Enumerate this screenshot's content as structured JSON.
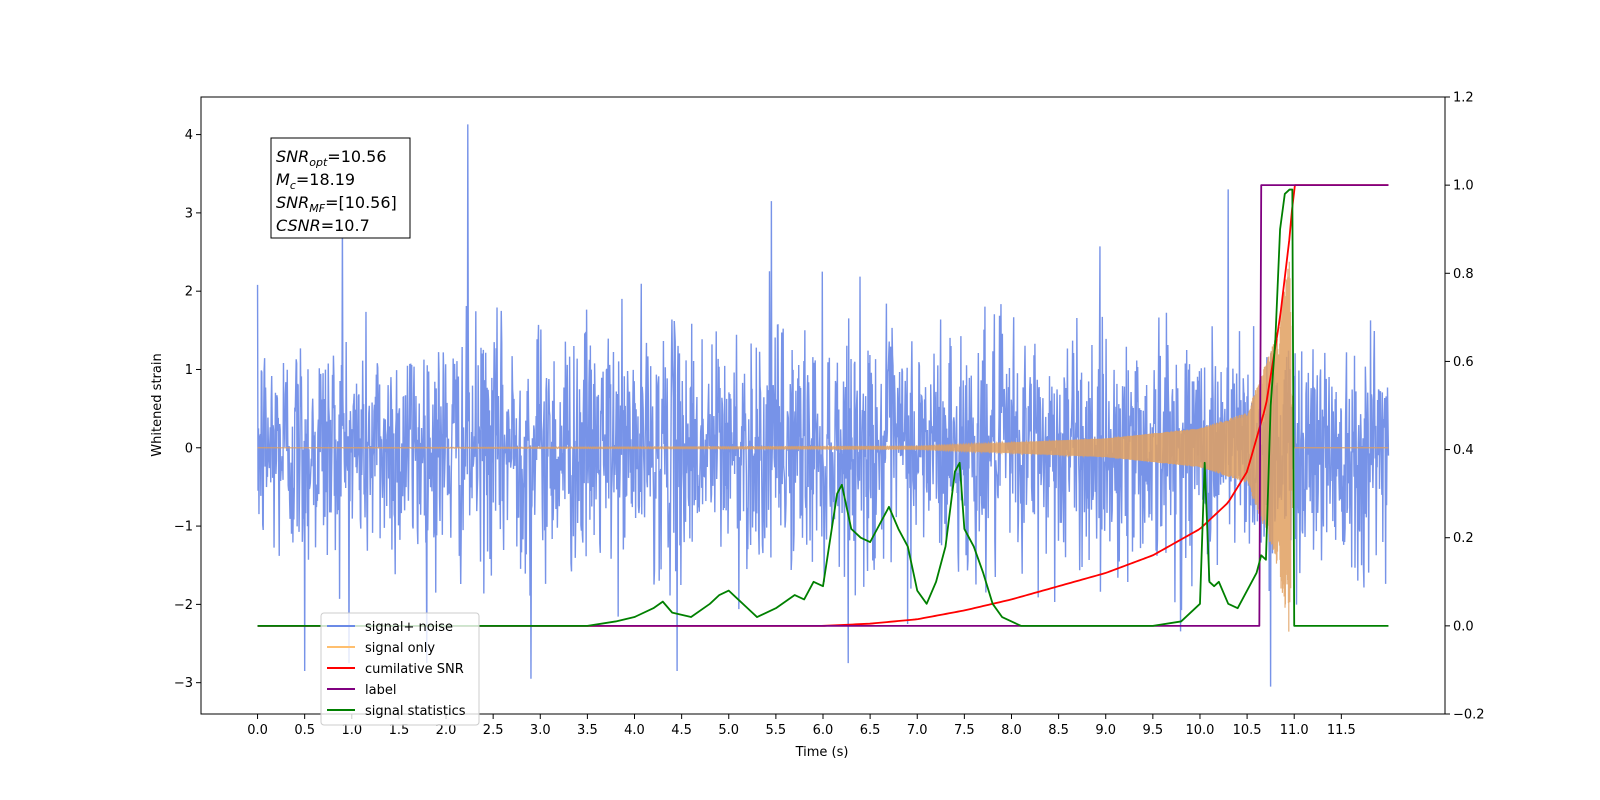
{
  "chart_data": {
    "type": "line",
    "title": "",
    "xlabel": "Time (s)",
    "ylabel": "Whitened strain",
    "ylabel_right": "",
    "xlim": [
      -0.6,
      12.6
    ],
    "ylim": [
      -3.4,
      4.48
    ],
    "ylim_right": [
      -0.2,
      1.2
    ],
    "x_ticks": [
      0.0,
      0.5,
      1.0,
      1.5,
      2.0,
      2.5,
      3.0,
      3.5,
      4.0,
      4.5,
      5.0,
      5.5,
      6.0,
      6.5,
      7.0,
      7.5,
      8.0,
      8.5,
      9.0,
      9.5,
      10.0,
      10.5,
      11.0,
      11.5
    ],
    "x_tick_labels": [
      "0.0",
      "0.5",
      "1.0",
      "1.5",
      "2.0",
      "2.5",
      "3.0",
      "3.5",
      "4.0",
      "4.5",
      "5.0",
      "5.5",
      "6.0",
      "6.5",
      "7.0",
      "7.5",
      "8.0",
      "8.5",
      "9.0",
      "9.5",
      "10.0",
      "10.5",
      "11.0",
      "11.5"
    ],
    "y_ticks": [
      -3,
      -2,
      -1,
      0,
      1,
      2,
      3,
      4
    ],
    "y_tick_labels": [
      "−3",
      "−2",
      "−1",
      "0",
      "1",
      "2",
      "3",
      "4"
    ],
    "y_right_ticks": [
      -0.2,
      0.0,
      0.2,
      0.4,
      0.6,
      0.8,
      1.0,
      1.2
    ],
    "y_right_tick_labels": [
      "−0.2",
      "0.0",
      "0.2",
      "0.4",
      "0.6",
      "0.8",
      "1.0",
      "1.2"
    ],
    "grid": false,
    "legend": {
      "placement": "lower-left",
      "entries": [
        {
          "label": "signal+ noise",
          "color": "#6b8ae6"
        },
        {
          "label": "signal only",
          "color": "#ffbf6e"
        },
        {
          "label": "cumilative SNR",
          "color": "#ff0000"
        },
        {
          "label": "label",
          "color": "#800080"
        },
        {
          "label": "signal statistics",
          "color": "#008000"
        }
      ]
    },
    "annotation": [
      {
        "main": "SNR",
        "sub": "opt",
        "rest": "=10.56"
      },
      {
        "main": "M",
        "sub": "c",
        "rest": "=18.19"
      },
      {
        "main": "SNR",
        "sub": "MF",
        "rest": "=[10.56]"
      },
      {
        "main": "CSNR",
        "sub": "",
        "rest": "=10.7"
      }
    ],
    "series": [
      {
        "name": "signal+ noise",
        "axis": "left",
        "color": "#6b8ae6",
        "x_range": [
          0.0,
          12.0
        ],
        "approx_std": 0.75,
        "approx_max": 4.13,
        "approx_min": -3.05,
        "notable_peaks": [
          [
            2.23,
            4.13
          ],
          [
            10.3,
            3.3
          ],
          [
            5.45,
            3.15
          ],
          [
            0.9,
            2.9
          ]
        ],
        "notable_dips": [
          [
            2.9,
            -2.95
          ],
          [
            0.5,
            -2.85
          ],
          [
            4.45,
            -2.85
          ],
          [
            10.75,
            -3.05
          ]
        ]
      },
      {
        "name": "signal only",
        "axis": "left",
        "color": "#e0a060",
        "description_points": [
          [
            0.0,
            0.0
          ],
          [
            7.0,
            0.02
          ],
          [
            9.0,
            0.12
          ],
          [
            10.0,
            0.25
          ],
          [
            10.5,
            0.45
          ],
          [
            10.8,
            1.4
          ],
          [
            10.95,
            2.4
          ],
          [
            11.0,
            0.0
          ],
          [
            12.0,
            0.0
          ]
        ]
      },
      {
        "name": "cumilative SNR",
        "axis": "right",
        "color": "#ff0000",
        "x": [
          0.0,
          6.0,
          6.5,
          7.0,
          7.5,
          8.0,
          8.5,
          9.0,
          9.5,
          10.0,
          10.3,
          10.5,
          10.7,
          10.85,
          10.95,
          11.0,
          11.5,
          12.0
        ],
        "y": [
          0.0,
          0.0,
          0.005,
          0.015,
          0.035,
          0.06,
          0.09,
          0.12,
          0.16,
          0.22,
          0.28,
          0.35,
          0.5,
          0.7,
          0.88,
          1.0,
          1.0,
          1.0
        ]
      },
      {
        "name": "label",
        "axis": "right",
        "color": "#800080",
        "x": [
          0.0,
          10.63,
          10.65,
          10.9,
          10.92,
          10.95,
          12.0
        ],
        "y": [
          0.0,
          0.0,
          1.0,
          1.0,
          1.0,
          1.0,
          1.0
        ]
      },
      {
        "name": "signal statistics",
        "axis": "right",
        "color": "#008000",
        "x": [
          0.0,
          3.5,
          3.8,
          4.0,
          4.2,
          4.3,
          4.4,
          4.6,
          4.8,
          4.9,
          5.0,
          5.1,
          5.2,
          5.3,
          5.5,
          5.7,
          5.8,
          5.9,
          6.0,
          6.1,
          6.15,
          6.2,
          6.3,
          6.4,
          6.5,
          6.6,
          6.7,
          6.8,
          6.9,
          7.0,
          7.1,
          7.2,
          7.3,
          7.4,
          7.45,
          7.5,
          7.6,
          7.7,
          7.8,
          7.9,
          8.0,
          8.1,
          9.5,
          9.8,
          10.0,
          10.05,
          10.1,
          10.15,
          10.2,
          10.3,
          10.4,
          10.5,
          10.6,
          10.65,
          10.7,
          10.75,
          10.8,
          10.85,
          10.9,
          10.95,
          10.98,
          11.0,
          12.0
        ],
        "y": [
          0.0,
          0.0,
          0.01,
          0.02,
          0.04,
          0.055,
          0.03,
          0.02,
          0.05,
          0.07,
          0.08,
          0.06,
          0.04,
          0.02,
          0.04,
          0.07,
          0.06,
          0.1,
          0.09,
          0.23,
          0.3,
          0.32,
          0.22,
          0.2,
          0.19,
          0.23,
          0.27,
          0.22,
          0.18,
          0.08,
          0.05,
          0.1,
          0.18,
          0.35,
          0.37,
          0.22,
          0.18,
          0.12,
          0.05,
          0.02,
          0.01,
          0.0,
          0.0,
          0.01,
          0.05,
          0.37,
          0.1,
          0.09,
          0.1,
          0.05,
          0.04,
          0.08,
          0.12,
          0.16,
          0.15,
          0.5,
          0.65,
          0.9,
          0.98,
          0.99,
          0.99,
          0.0,
          0.0
        ]
      }
    ]
  }
}
